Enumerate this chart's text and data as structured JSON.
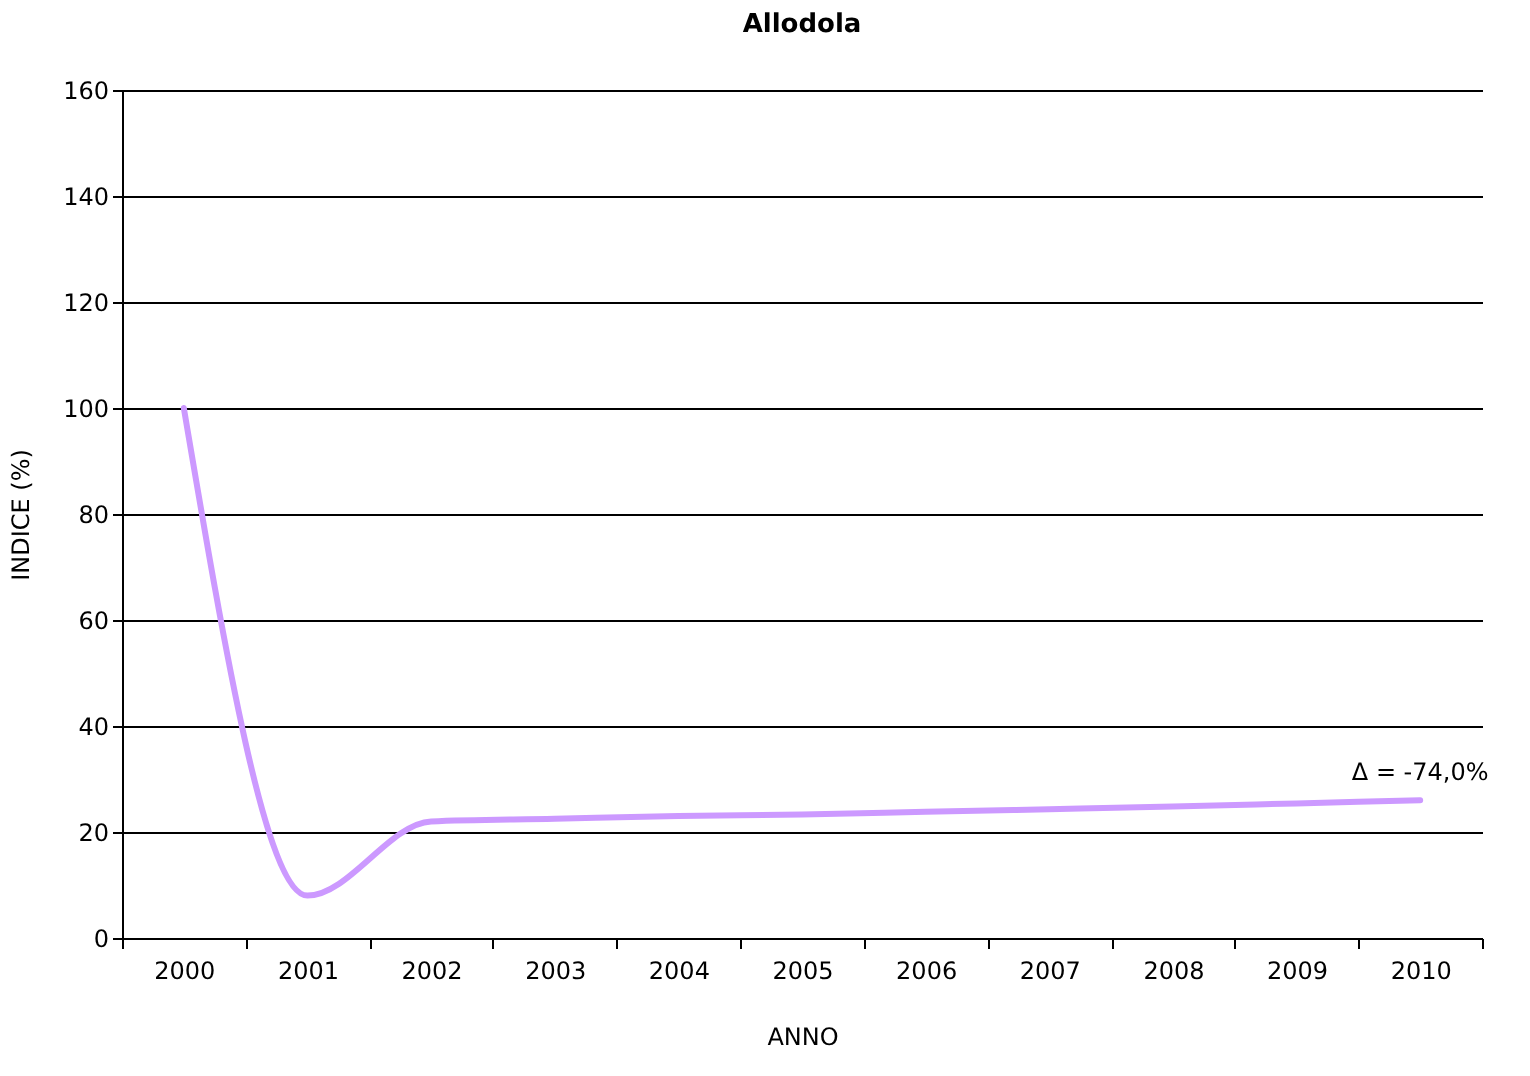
{
  "chart_data": {
    "type": "line",
    "title": "Allodola",
    "xlabel": "ANNO",
    "ylabel": "INDICE (%)",
    "categories": [
      "2000",
      "2001",
      "2002",
      "2003",
      "2004",
      "2005",
      "2006",
      "2007",
      "2008",
      "2009",
      "2010"
    ],
    "series": [
      {
        "color": "#cc99ff",
        "values": [
          100,
          8,
          22,
          22.5,
          23,
          23.3,
          23.8,
          24.3,
          24.8,
          25.4,
          26
        ]
      }
    ],
    "ylim": [
      0,
      160
    ],
    "yticks": [
      0,
      20,
      40,
      60,
      80,
      100,
      120,
      140,
      160
    ],
    "grid": "y",
    "marker": "none",
    "annotations": [
      {
        "text": "Δ = -74,0%",
        "x": "2010",
        "y": 26
      }
    ]
  }
}
